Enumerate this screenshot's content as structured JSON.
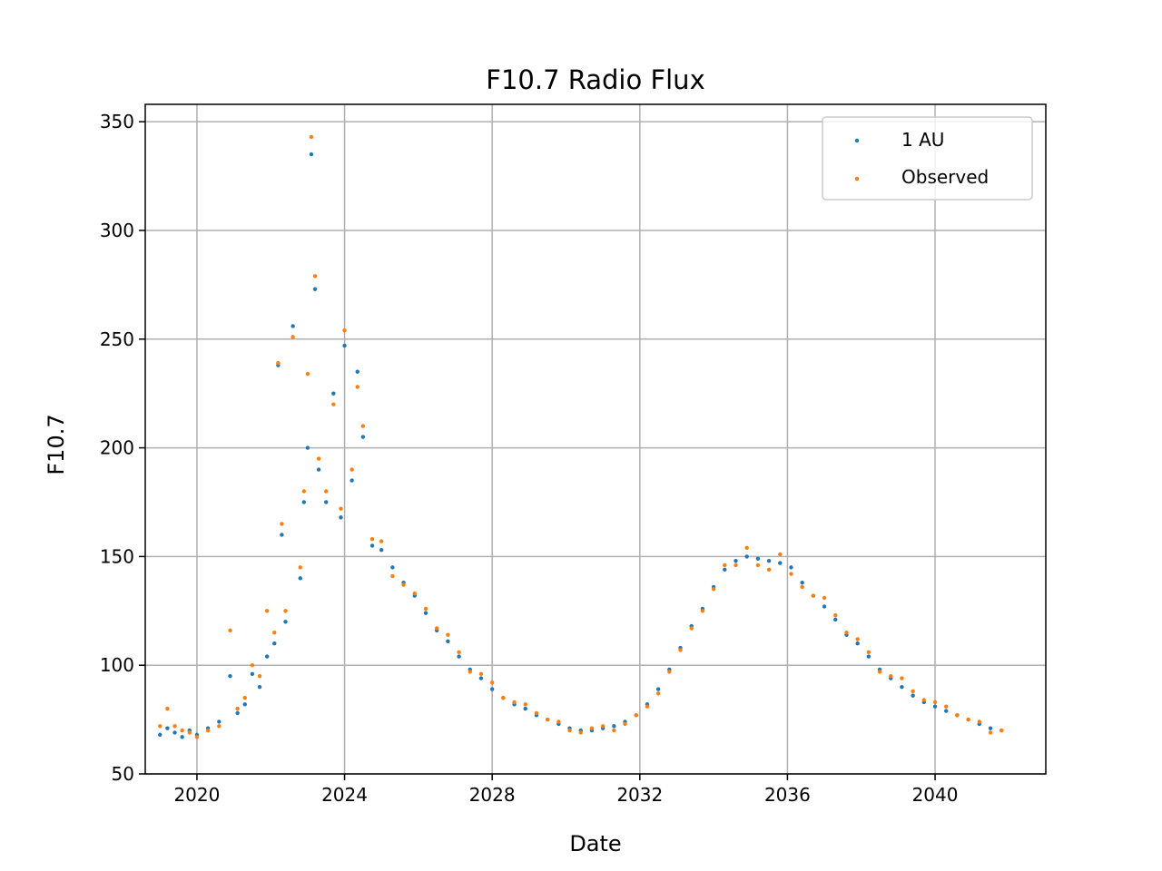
{
  "chart_data": {
    "type": "scatter",
    "title": "F10.7 Radio Flux",
    "xlabel": "Date",
    "ylabel": "F10.7",
    "xlim": [
      2018.6,
      2043.0
    ],
    "ylim": [
      50,
      358
    ],
    "xticks": [
      2020,
      2024,
      2028,
      2032,
      2036,
      2040
    ],
    "xtick_labels": [
      "2020",
      "2024",
      "2028",
      "2032",
      "2036",
      "2040"
    ],
    "yticks": [
      50,
      100,
      150,
      200,
      250,
      300,
      350
    ],
    "ytick_labels": [
      "50",
      "100",
      "150",
      "200",
      "250",
      "300",
      "350"
    ],
    "grid": true,
    "legend_position": "top-right",
    "legend_entries": [
      "1 AU",
      "Observed"
    ],
    "series": [
      {
        "name": "1 AU",
        "color": "#1f77b4",
        "x": [
          2019.0,
          2019.2,
          2019.4,
          2019.6,
          2019.8,
          2020.0,
          2020.3,
          2020.6,
          2020.9,
          2021.1,
          2021.3,
          2021.5,
          2021.7,
          2021.9,
          2022.1,
          2022.2,
          2022.3,
          2022.4,
          2022.6,
          2022.8,
          2022.9,
          2023.0,
          2023.1,
          2023.2,
          2023.3,
          2023.5,
          2023.7,
          2023.9,
          2024.0,
          2024.2,
          2024.35,
          2024.5,
          2024.75,
          2025.0,
          2025.3,
          2025.6,
          2025.9,
          2026.2,
          2026.5,
          2026.8,
          2027.1,
          2027.4,
          2027.7,
          2028.0,
          2028.3,
          2028.6,
          2028.9,
          2029.2,
          2029.5,
          2029.8,
          2030.1,
          2030.4,
          2030.7,
          2031.0,
          2031.3,
          2031.6,
          2031.9,
          2032.2,
          2032.5,
          2032.8,
          2033.1,
          2033.4,
          2033.7,
          2034.0,
          2034.3,
          2034.6,
          2034.9,
          2035.2,
          2035.5,
          2035.8,
          2036.1,
          2036.4,
          2036.7,
          2037.0,
          2037.3,
          2037.6,
          2037.9,
          2038.2,
          2038.5,
          2038.8,
          2039.1,
          2039.4,
          2039.7,
          2040.0,
          2040.3,
          2040.6,
          2040.9,
          2041.2,
          2041.5,
          2041.8
        ],
        "y": [
          68,
          71,
          69,
          67,
          70,
          68,
          71,
          74,
          95,
          78,
          82,
          96,
          90,
          104,
          110,
          238,
          160,
          120,
          256,
          140,
          175,
          200,
          335,
          273,
          190,
          175,
          225,
          168,
          247,
          185,
          235,
          205,
          155,
          153,
          145,
          138,
          132,
          124,
          116,
          111,
          104,
          98,
          94,
          89,
          85,
          82,
          80,
          77,
          75,
          73,
          71,
          70,
          70,
          71,
          72,
          74,
          77,
          82,
          89,
          98,
          108,
          118,
          126,
          136,
          144,
          148,
          150,
          149,
          148,
          147,
          145,
          138,
          132,
          127,
          121,
          114,
          110,
          104,
          98,
          94,
          90,
          86,
          83,
          81,
          79,
          77,
          75,
          73,
          71,
          70
        ]
      },
      {
        "name": "Observed",
        "color": "#ff7f0e",
        "x": [
          2019.0,
          2019.2,
          2019.4,
          2019.6,
          2019.8,
          2020.0,
          2020.3,
          2020.6,
          2020.9,
          2021.1,
          2021.3,
          2021.5,
          2021.7,
          2021.9,
          2022.1,
          2022.2,
          2022.3,
          2022.4,
          2022.6,
          2022.8,
          2022.9,
          2023.0,
          2023.1,
          2023.2,
          2023.3,
          2023.5,
          2023.7,
          2023.9,
          2024.0,
          2024.2,
          2024.35,
          2024.5,
          2024.75,
          2025.0,
          2025.3,
          2025.6,
          2025.9,
          2026.2,
          2026.5,
          2026.8,
          2027.1,
          2027.4,
          2027.7,
          2028.0,
          2028.3,
          2028.6,
          2028.9,
          2029.2,
          2029.5,
          2029.8,
          2030.1,
          2030.4,
          2030.7,
          2031.0,
          2031.3,
          2031.6,
          2031.9,
          2032.2,
          2032.5,
          2032.8,
          2033.1,
          2033.4,
          2033.7,
          2034.0,
          2034.3,
          2034.6,
          2034.9,
          2035.2,
          2035.5,
          2035.8,
          2036.1,
          2036.4,
          2036.7,
          2037.0,
          2037.3,
          2037.6,
          2037.9,
          2038.2,
          2038.5,
          2038.8,
          2039.1,
          2039.4,
          2039.7,
          2040.0,
          2040.3,
          2040.6,
          2040.9,
          2041.2,
          2041.5,
          2041.8
        ],
        "y": [
          72,
          80,
          72,
          70,
          69,
          67,
          70,
          72,
          116,
          80,
          85,
          100,
          95,
          125,
          115,
          239,
          165,
          125,
          251,
          145,
          180,
          234,
          343,
          279,
          195,
          180,
          220,
          172,
          254,
          190,
          228,
          210,
          158,
          157,
          141,
          137,
          133,
          126,
          117,
          114,
          106,
          97,
          96,
          92,
          85,
          83,
          82,
          78,
          75,
          74,
          70,
          69,
          71,
          72,
          70,
          73,
          77,
          81,
          87,
          97,
          107,
          117,
          125,
          135,
          146,
          146,
          154,
          146,
          144,
          151,
          142,
          136,
          132,
          131,
          123,
          115,
          112,
          106,
          97,
          95,
          94,
          88,
          84,
          83,
          81,
          77,
          75,
          74,
          69,
          70
        ]
      }
    ]
  }
}
